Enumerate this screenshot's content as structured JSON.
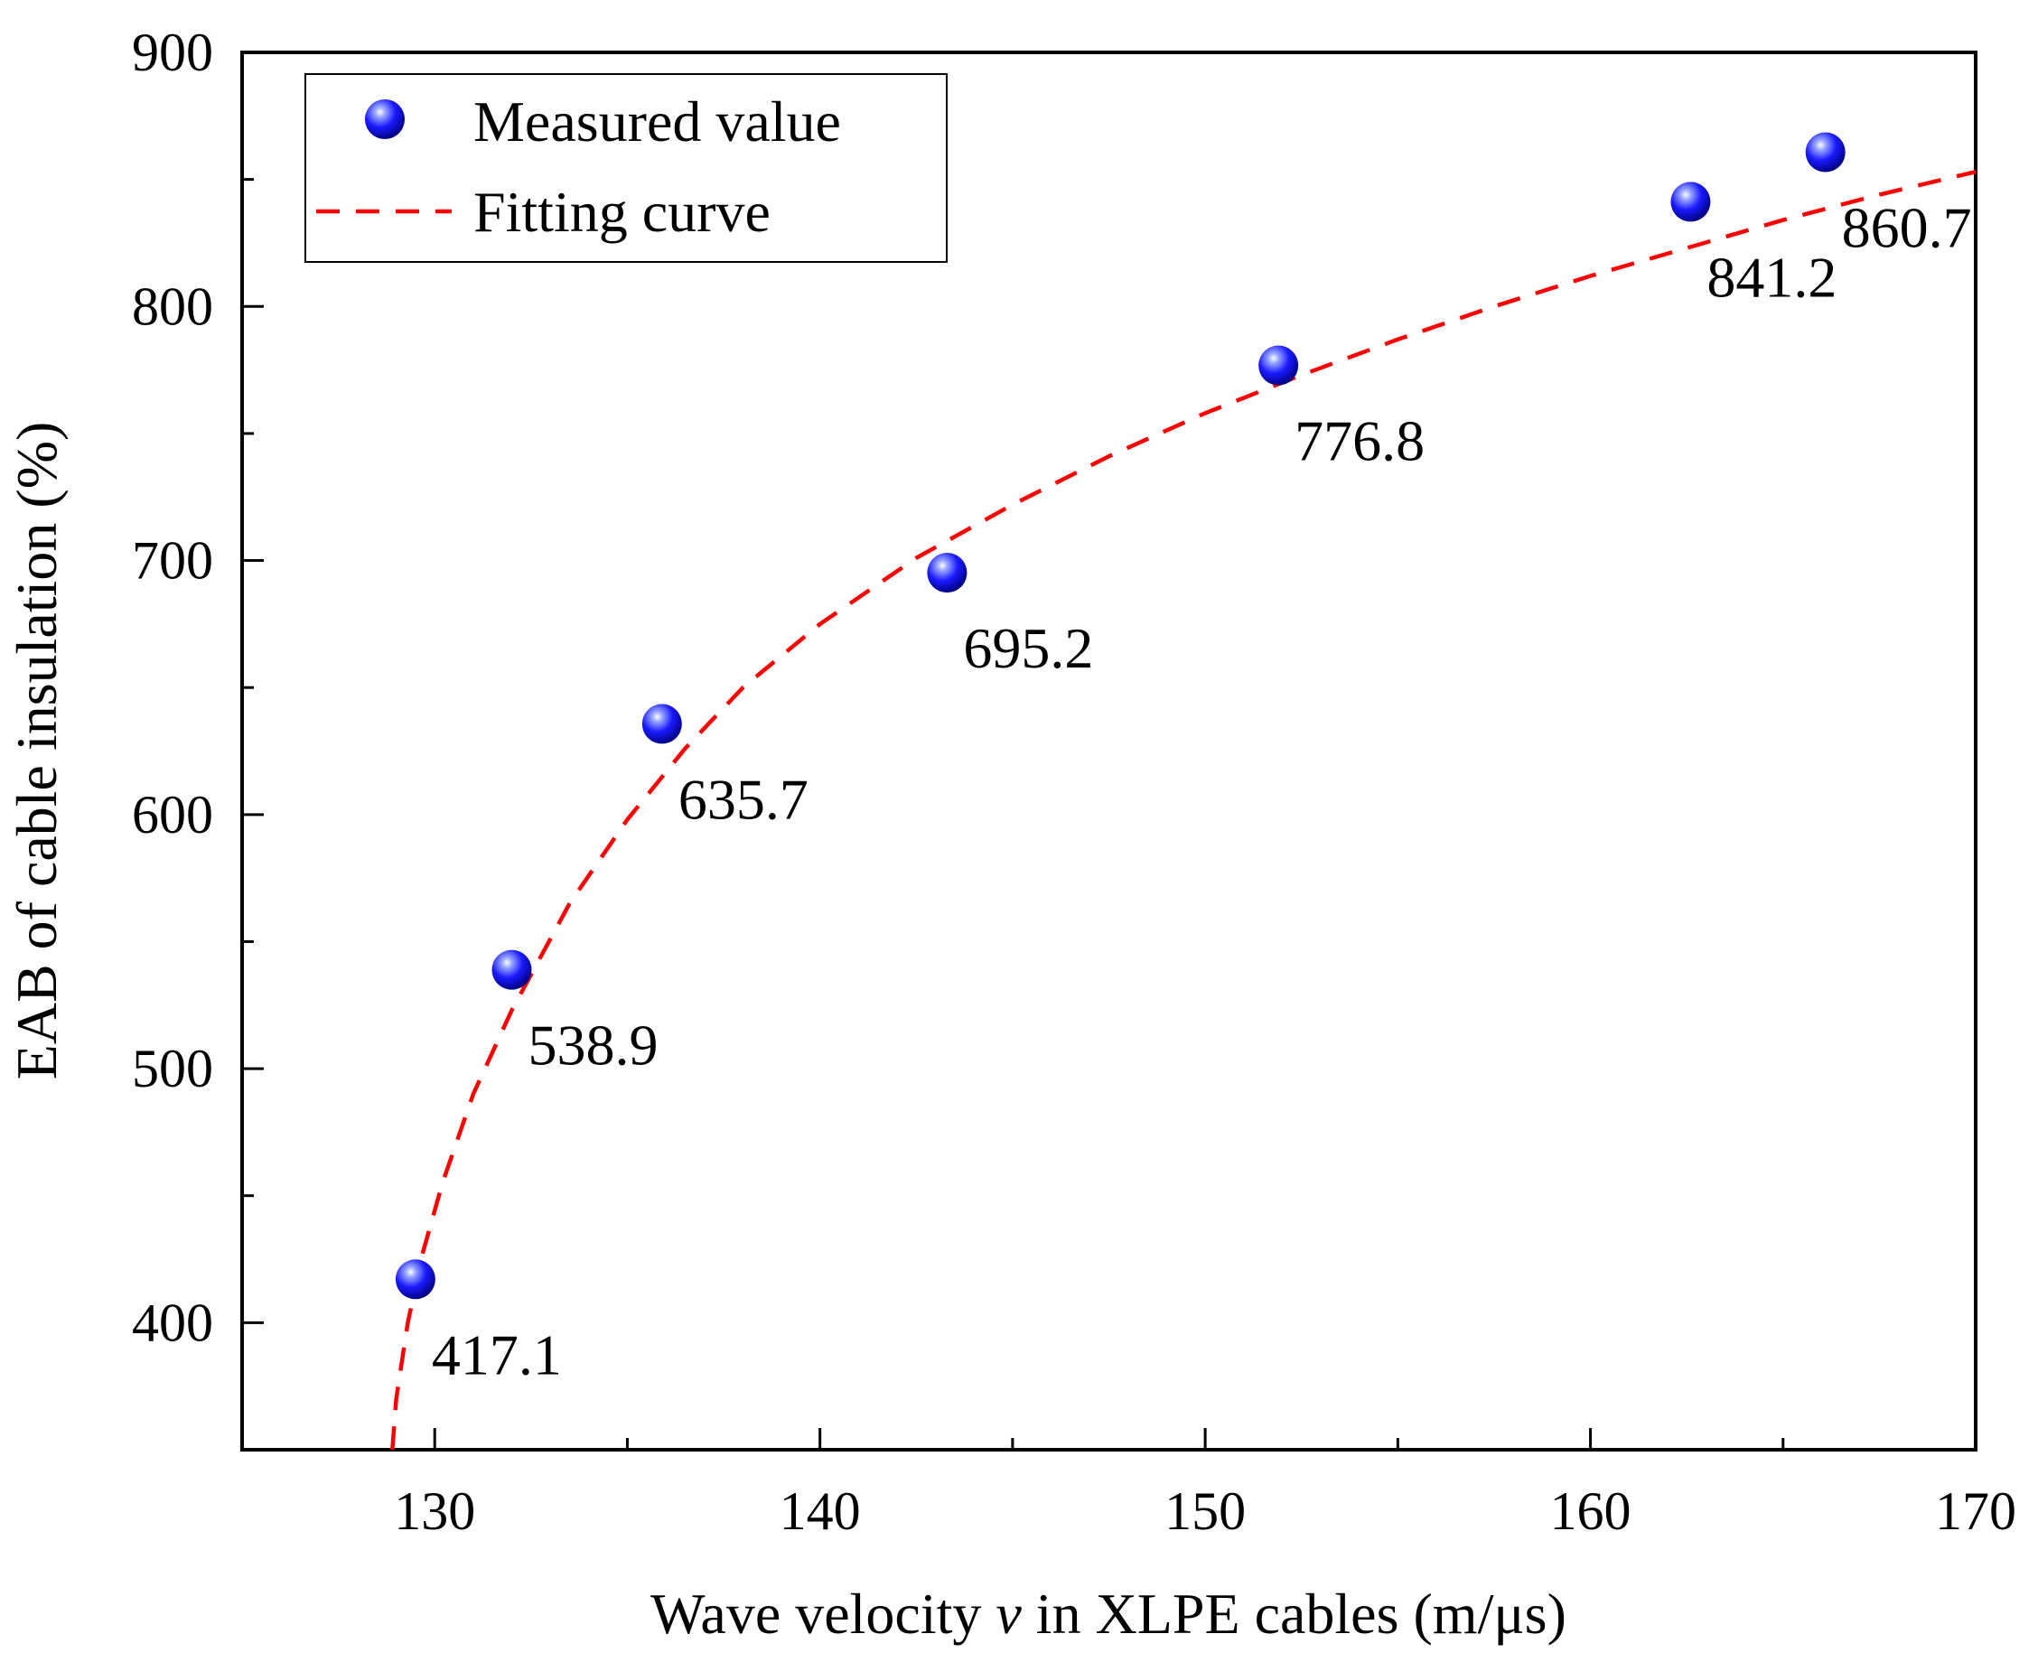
{
  "chart_data": {
    "type": "scatter",
    "title": "",
    "xlabel_parts": [
      "Wave velocity ",
      "v",
      " in XLPE cables (m/μs)"
    ],
    "ylabel": "EAB of cable insulation (%)",
    "xlim": [
      125,
      170
    ],
    "ylim": [
      350,
      900
    ],
    "xticks": [
      130,
      140,
      150,
      160,
      170
    ],
    "yticks": [
      400,
      500,
      600,
      700,
      800,
      900
    ],
    "grid": false,
    "legend_position": "top-left",
    "series": [
      {
        "name": "Measured value",
        "kind": "scatter",
        "marker": "sphere",
        "color": "#1a1aff",
        "x": [
          129.5,
          132.0,
          135.9,
          143.3,
          151.9,
          162.6,
          166.1
        ],
        "y": [
          417.1,
          538.9,
          635.7,
          695.2,
          776.8,
          841.2,
          860.7
        ],
        "labels": [
          "417.1",
          "538.9",
          "635.7",
          "695.2",
          "776.8",
          "841.2",
          "860.7"
        ]
      },
      {
        "name": "Fitting curve",
        "kind": "line",
        "style": "dashed",
        "color": "#ff0000",
        "x": [
          128.9,
          129.0,
          129.3,
          129.7,
          130.2,
          131.0,
          132.0,
          133.5,
          135.0,
          136.5,
          138.0,
          140.0,
          142.5,
          145.0,
          147.5,
          150.0,
          152.5,
          155.0,
          157.5,
          160.0,
          162.5,
          165.0,
          167.5,
          170.0
        ],
        "y": [
          350,
          370,
          400,
          428,
          455,
          490,
          523,
          565,
          598,
          626,
          650,
          675,
          701,
          722,
          741,
          758,
          773,
          787,
          800,
          812,
          823,
          834,
          844,
          853
        ]
      }
    ]
  }
}
